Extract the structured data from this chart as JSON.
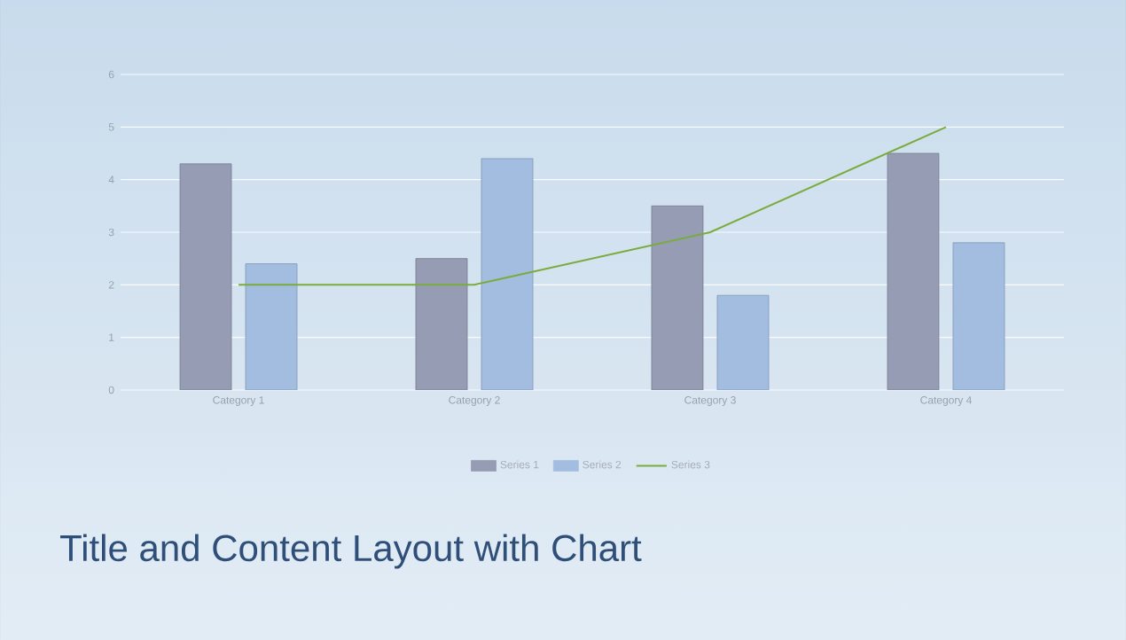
{
  "chart_data": {
    "type": "bar",
    "title": "Title and Content Layout with Chart",
    "categories": [
      "Category 1",
      "Category 2",
      "Category 3",
      "Category 4"
    ],
    "series": [
      {
        "name": "Series 1",
        "color": "#959cb3",
        "values": [
          4.3,
          2.5,
          3.5,
          4.5
        ]
      },
      {
        "name": "Series 2",
        "color": "#a3bde0",
        "values": [
          2.4,
          4.4,
          1.8,
          2.8
        ]
      },
      {
        "name": "Series 3",
        "color": "#7aab3c",
        "type": "line",
        "values": [
          2,
          2,
          3,
          5
        ]
      }
    ],
    "ylim": [
      0,
      6
    ],
    "yticks": [
      0,
      1,
      2,
      3,
      4,
      5,
      6
    ],
    "grid": "y",
    "legend": "bottom"
  }
}
